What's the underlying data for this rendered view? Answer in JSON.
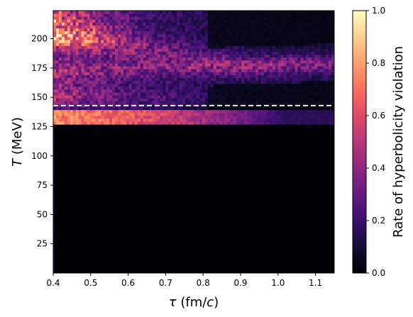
{
  "chart_data": {
    "type": "heatmap",
    "xlabel_symbol": "τ",
    "xlabel_unit_pre": " (fm/",
    "xlabel_unit_c": "c",
    "xlabel_unit_post": ")",
    "ylabel_symbol": "T",
    "ylabel_unit": " (MeV)",
    "colorbar_label": "Rate of hyperbolicity violation",
    "xlim": [
      0.4,
      1.15
    ],
    "ylim": [
      0,
      224
    ],
    "clim": [
      0.0,
      1.0
    ],
    "x_ticks": [
      0.4,
      0.5,
      0.6,
      0.7,
      0.8,
      0.9,
      1.0,
      1.1
    ],
    "x_tick_labels": [
      "0.4",
      "0.5",
      "0.6",
      "0.7",
      "0.8",
      "0.9",
      "1.0",
      "1.1"
    ],
    "y_ticks": [
      25,
      50,
      75,
      100,
      125,
      150,
      175,
      200
    ],
    "y_tick_labels": [
      "25",
      "50",
      "75",
      "100",
      "125",
      "150",
      "175",
      "200"
    ],
    "colorbar_ticks": [
      0.0,
      0.2,
      0.4,
      0.6,
      0.8,
      1.0
    ],
    "colorbar_tick_labels": [
      "0.0",
      "0.2",
      "0.4",
      "0.6",
      "0.8",
      "1.0"
    ],
    "colormap": "magma",
    "reference_line": {
      "y": 143,
      "style": "dashed",
      "color": "#ffffff"
    },
    "regions": [
      {
        "description_value": "band",
        "t_range": [
          126,
          139
        ],
        "tau_range": [
          0.4,
          1.0
        ],
        "intensity_start": 0.62,
        "intensity_end": 0.15
      },
      {
        "description_value": "band",
        "t_range": [
          139,
          224
        ],
        "tau_range": [
          0.4,
          1.15
        ],
        "intensity_start": 0.35,
        "intensity_end": 0.2
      },
      {
        "description_value": "ridge",
        "t_center_start": 200,
        "t_center_end": 178,
        "tau_range": [
          0.4,
          1.15
        ],
        "intensity": 0.3
      },
      {
        "description_value": "zero",
        "t_range": [
          0,
          125
        ],
        "tau_range": [
          0.4,
          1.15
        ],
        "intensity": 0.0
      }
    ]
  }
}
